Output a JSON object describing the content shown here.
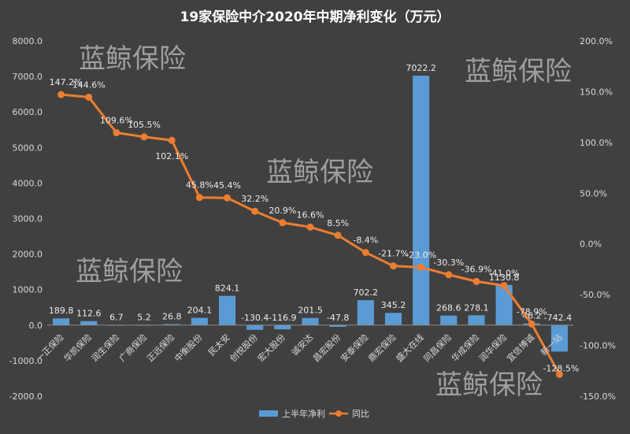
{
  "chart_data": {
    "type": "bar-line-combo",
    "title": "19家保险中介2020年中期净利变化（万元）",
    "categories": [
      "一正保险",
      "华凯保险",
      "润生保险",
      "广商保险",
      "正远保险",
      "中衡股份",
      "民太安",
      "创悦股份",
      "宏大股份",
      "诚安达",
      "昌宏股份",
      "安泰保险",
      "鼎宏保险",
      "盛大在线",
      "同昌保险",
      "华成保险",
      "润华保险",
      "宜信博诚",
      "新一站"
    ],
    "series": [
      {
        "name": "上半年净利",
        "type": "bar",
        "axis": "left",
        "color": "#5b9bd5",
        "values": [
          189.8,
          112.6,
          6.7,
          5.2,
          26.8,
          204.1,
          824.1,
          -130.4,
          -116.9,
          201.5,
          -47.8,
          702.2,
          345.2,
          7022.2,
          268.6,
          278.1,
          1130.8,
          46.2,
          -742.4
        ],
        "labels": [
          "189.8",
          "112.6",
          "6.7",
          "5.2",
          "26.8",
          "204.1",
          "824.1",
          "-130.4",
          "-116.9",
          "201.5",
          "-47.8",
          "702.2",
          "345.2",
          "7022.2",
          "268.6",
          "278.1",
          "1130.8",
          "46.2",
          "-742.4"
        ]
      },
      {
        "name": "同比",
        "type": "line",
        "axis": "right",
        "color": "#ed7d31",
        "values": [
          147.2,
          144.6,
          109.6,
          105.5,
          102.1,
          45.8,
          45.4,
          32.2,
          20.9,
          16.6,
          8.5,
          -8.4,
          -21.7,
          -23.0,
          -30.3,
          -36.9,
          -41.0,
          -78.9,
          -128.5
        ],
        "labels": [
          "147.2%",
          "144.6%",
          "109.6%",
          "105.5%",
          "102.1%",
          "45.8%",
          "45.4%",
          "32.2%",
          "20.9%",
          "16.6%",
          "8.5%",
          "-8.4%",
          "-21.7%",
          "-23.0%",
          "-30.3%",
          "-36.9%",
          "-41.0%",
          "-78.9%",
          "-128.5%"
        ]
      }
    ],
    "y_left": {
      "range": [
        -2000,
        8000
      ],
      "ticks": [
        -2000,
        -1000,
        0,
        1000,
        2000,
        3000,
        4000,
        5000,
        6000,
        7000,
        8000
      ],
      "tick_labels": [
        "-2000.0",
        "-1000.0",
        "0.0",
        "1000.0",
        "2000.0",
        "3000.0",
        "4000.0",
        "5000.0",
        "6000.0",
        "7000.0",
        "8000.0"
      ]
    },
    "y_right": {
      "range": [
        -150,
        200
      ],
      "ticks": [
        -150,
        -100,
        -50,
        0,
        50,
        100,
        150,
        200
      ],
      "tick_labels": [
        "-150.0%",
        "-100.0%",
        "-50.0%",
        "0.0%",
        "50.0%",
        "100.0%",
        "150.0%",
        "200.0%"
      ]
    },
    "legend": {
      "position": "bottom",
      "entries": [
        "上半年净利",
        "同比"
      ]
    },
    "grid": false,
    "watermark": "蓝鲸保险"
  }
}
